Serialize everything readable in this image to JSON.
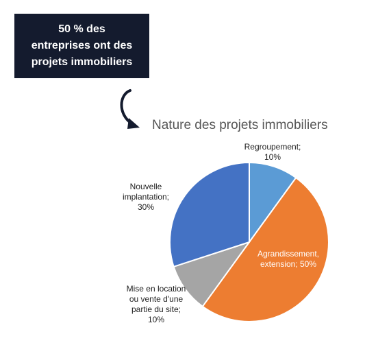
{
  "banner": {
    "lines": [
      "50 % des",
      "entreprises ont des",
      "projets immobiliers"
    ]
  },
  "chart_data": {
    "type": "pie",
    "title": "Nature des projets immobiliers",
    "slices": [
      {
        "label": "Regroupement",
        "value": 10,
        "color": "#5b9bd5",
        "label_lines": [
          "Regroupement;",
          "10%"
        ]
      },
      {
        "label": "Agrandissement, extension",
        "value": 50,
        "color": "#ed7d31",
        "label_lines": [
          "Agrandissement,",
          "extension; 50%"
        ]
      },
      {
        "label": "Mise en location ou vente d'une partie du site",
        "value": 10,
        "color": "#a5a5a5",
        "label_lines": [
          "Mise en location",
          "ou vente d'une",
          "partie du site;",
          "10%"
        ]
      },
      {
        "label": "Nouvelle implantation",
        "value": 30,
        "color": "#4472c4",
        "label_lines": [
          "Nouvelle",
          "implantation;",
          "30%"
        ]
      }
    ],
    "start_angle": "12 o'clock",
    "direction": "clockwise"
  }
}
